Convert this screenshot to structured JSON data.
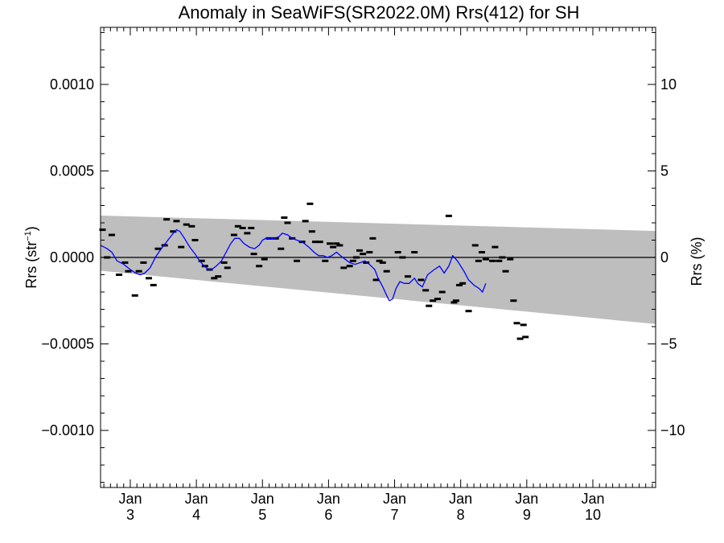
{
  "chart_data": {
    "type": "scatter",
    "title": "Anomaly in SeaWiFS(SR2022.0M) Rrs(412) for SH",
    "ylabel_left": {
      "text": "Rrs (str",
      "sup": "−1",
      "tail": ")"
    },
    "ylabel_right": "Rrs (%)",
    "xlim": [
      2.55,
      10.95
    ],
    "ylim": [
      -0.00133,
      0.00133
    ],
    "ylim_right": [
      -13.3,
      13.3
    ],
    "x_ticks": [
      {
        "value": 3,
        "top": "Jan",
        "bottom": "3"
      },
      {
        "value": 4,
        "top": "Jan",
        "bottom": "4"
      },
      {
        "value": 5,
        "top": "Jan",
        "bottom": "5"
      },
      {
        "value": 6,
        "top": "Jan",
        "bottom": "6"
      },
      {
        "value": 7,
        "top": "Jan",
        "bottom": "7"
      },
      {
        "value": 8,
        "top": "Jan",
        "bottom": "8"
      },
      {
        "value": 9,
        "top": "Jan",
        "bottom": "9"
      },
      {
        "value": 10,
        "top": "Jan",
        "bottom": "10"
      }
    ],
    "y_ticks_left": [
      {
        "value": 0.001,
        "label": "0.0010"
      },
      {
        "value": 0.0005,
        "label": "0.0005"
      },
      {
        "value": 0.0,
        "label": "0.0000"
      },
      {
        "value": -0.0005,
        "label": "−0.0005"
      },
      {
        "value": -0.001,
        "label": "−0.0010"
      }
    ],
    "y_ticks_right": [
      {
        "value": 10,
        "label": "10"
      },
      {
        "value": 5,
        "label": "5"
      },
      {
        "value": 0,
        "label": "0"
      },
      {
        "value": -5,
        "label": "−5"
      },
      {
        "value": -10,
        "label": "−10"
      }
    ],
    "band": {
      "color": "#bebebe",
      "upper": [
        [
          2.55,
          0.000242
        ],
        [
          10.95,
          0.000153
        ]
      ],
      "lower": [
        [
          2.55,
          -7.7e-05
        ],
        [
          10.95,
          -0.000385
        ]
      ]
    },
    "colors": {
      "line": "#0000ff",
      "points": "#000000",
      "zero": "#000000"
    },
    "points": [
      [
        2.58,
        0.00016
      ],
      [
        2.65,
        0.0
      ],
      [
        2.72,
        0.00013
      ],
      [
        2.83,
        -0.0001
      ],
      [
        2.92,
        -3e-05
      ],
      [
        2.97,
        -8e-05
      ],
      [
        3.07,
        -0.00022
      ],
      [
        3.13,
        -8e-05
      ],
      [
        3.2,
        -3e-05
      ],
      [
        3.28,
        -0.00012
      ],
      [
        3.35,
        -0.00016
      ],
      [
        3.42,
        5e-05
      ],
      [
        3.52,
        7e-05
      ],
      [
        3.55,
        0.00022
      ],
      [
        3.65,
        0.00015
      ],
      [
        3.7,
        0.00021
      ],
      [
        3.77,
        6e-05
      ],
      [
        3.85,
        0.00019
      ],
      [
        3.93,
        0.00018
      ],
      [
        3.98,
        0.0001
      ],
      [
        4.08,
        -2e-05
      ],
      [
        4.13,
        -5e-05
      ],
      [
        4.2,
        -7e-05
      ],
      [
        4.27,
        -0.00012
      ],
      [
        4.33,
        -0.00011
      ],
      [
        4.42,
        -3e-05
      ],
      [
        4.47,
        -6e-05
      ],
      [
        4.57,
        0.00013
      ],
      [
        4.63,
        0.00018
      ],
      [
        4.7,
        0.00017
      ],
      [
        4.77,
        0.00014
      ],
      [
        4.83,
        0.00017
      ],
      [
        4.87,
        2e-05
      ],
      [
        4.95,
        -5e-05
      ],
      [
        5.03,
        -1e-05
      ],
      [
        5.1,
        0.00011
      ],
      [
        5.2,
        0.00011
      ],
      [
        5.28,
        5e-05
      ],
      [
        5.33,
        0.00023
      ],
      [
        5.38,
        0.0002
      ],
      [
        5.45,
        0.00011
      ],
      [
        5.52,
        -2e-05
      ],
      [
        5.6,
        9e-05
      ],
      [
        5.65,
        0.00021
      ],
      [
        5.72,
        0.00031
      ],
      [
        5.75,
        0.00015
      ],
      [
        5.8,
        9e-05
      ],
      [
        5.87,
        9e-05
      ],
      [
        5.95,
        -2e-05
      ],
      [
        6.02,
        8e-05
      ],
      [
        6.07,
        6e-05
      ],
      [
        6.12,
        8e-05
      ],
      [
        6.17,
        7e-05
      ],
      [
        6.23,
        -6e-05
      ],
      [
        6.32,
        -5e-05
      ],
      [
        6.37,
        -2e-05
      ],
      [
        6.42,
        0.0
      ],
      [
        6.47,
        4e-05
      ],
      [
        6.52,
        2e-05
      ],
      [
        6.57,
        -3e-05
      ],
      [
        6.62,
        3e-05
      ],
      [
        6.67,
        0.00011
      ],
      [
        6.72,
        -0.00013
      ],
      [
        6.77,
        -2e-05
      ],
      [
        6.82,
        -3e-05
      ],
      [
        6.88,
        -8e-05
      ],
      [
        7.05,
        3e-05
      ],
      [
        7.12,
        0.0
      ],
      [
        7.2,
        -0.00011
      ],
      [
        7.3,
        3e-05
      ],
      [
        7.4,
        -0.00013
      ],
      [
        7.47,
        -0.00019
      ],
      [
        7.52,
        -0.00028
      ],
      [
        7.58,
        -0.00025
      ],
      [
        7.65,
        -0.00024
      ],
      [
        7.72,
        -0.0002
      ],
      [
        7.82,
        0.00024
      ],
      [
        7.9,
        -0.00026
      ],
      [
        7.93,
        -0.00025
      ],
      [
        7.98,
        -0.00016
      ],
      [
        8.03,
        -0.00015
      ],
      [
        8.12,
        -0.00031
      ],
      [
        8.22,
        7e-05
      ],
      [
        8.27,
        -2e-05
      ],
      [
        8.32,
        3e-05
      ],
      [
        8.38,
        -1e-05
      ],
      [
        8.48,
        -2e-05
      ],
      [
        8.52,
        6e-05
      ],
      [
        8.58,
        -2e-05
      ],
      [
        8.63,
        0.0
      ],
      [
        8.68,
        -8e-05
      ],
      [
        8.75,
        -1e-05
      ],
      [
        8.8,
        -0.00025
      ],
      [
        8.85,
        -0.00038
      ],
      [
        8.9,
        -0.00047
      ],
      [
        8.95,
        -0.00039
      ],
      [
        8.98,
        -0.00046
      ]
    ],
    "smooth_line": [
      [
        2.55,
        7e-05
      ],
      [
        2.65,
        5e-05
      ],
      [
        2.72,
        3e-05
      ],
      [
        2.8,
        -2e-05
      ],
      [
        2.9,
        -4e-05
      ],
      [
        3.0,
        -7e-05
      ],
      [
        3.08,
        -9e-05
      ],
      [
        3.15,
        -0.0001
      ],
      [
        3.22,
        -9e-05
      ],
      [
        3.3,
        -6e-05
      ],
      [
        3.38,
        0.0
      ],
      [
        3.45,
        4e-05
      ],
      [
        3.55,
        9e-05
      ],
      [
        3.65,
        0.00014
      ],
      [
        3.7,
        0.00016
      ],
      [
        3.75,
        0.00015
      ],
      [
        3.82,
        0.00011
      ],
      [
        3.9,
        6e-05
      ],
      [
        3.98,
        2e-05
      ],
      [
        4.05,
        -2e-05
      ],
      [
        4.12,
        -5e-05
      ],
      [
        4.18,
        -7e-05
      ],
      [
        4.23,
        -7e-05
      ],
      [
        4.3,
        -5e-05
      ],
      [
        4.38,
        -2e-05
      ],
      [
        4.45,
        3e-05
      ],
      [
        4.52,
        8e-05
      ],
      [
        4.58,
        0.00011
      ],
      [
        4.65,
        0.00011
      ],
      [
        4.72,
        8e-05
      ],
      [
        4.8,
        6e-05
      ],
      [
        4.88,
        5e-05
      ],
      [
        4.95,
        7e-05
      ],
      [
        5.0,
        0.0001
      ],
      [
        5.05,
        0.00011
      ],
      [
        5.1,
        0.00011
      ],
      [
        5.18,
        0.00011
      ],
      [
        5.25,
        0.00012
      ],
      [
        5.3,
        0.00014
      ],
      [
        5.38,
        0.00013
      ],
      [
        5.45,
        0.00011
      ],
      [
        5.52,
        0.0001
      ],
      [
        5.6,
        9e-05
      ],
      [
        5.7,
        6e-05
      ],
      [
        5.78,
        3e-05
      ],
      [
        5.85,
        1e-05
      ],
      [
        5.92,
        1e-05
      ],
      [
        5.98,
        0.0
      ],
      [
        6.05,
        1e-05
      ],
      [
        6.12,
        3e-05
      ],
      [
        6.18,
        1e-05
      ],
      [
        6.25,
        -1e-05
      ],
      [
        6.32,
        -3e-05
      ],
      [
        6.4,
        -4e-05
      ],
      [
        6.48,
        -3e-05
      ],
      [
        6.55,
        -2e-05
      ],
      [
        6.62,
        -4e-05
      ],
      [
        6.7,
        -7e-05
      ],
      [
        6.75,
        -0.00012
      ],
      [
        6.82,
        -0.00017
      ],
      [
        6.88,
        -0.00022
      ],
      [
        6.92,
        -0.00025
      ],
      [
        6.97,
        -0.00024
      ],
      [
        7.02,
        -0.00018
      ],
      [
        7.08,
        -0.00014
      ],
      [
        7.15,
        -0.00015
      ],
      [
        7.22,
        -0.00015
      ],
      [
        7.3,
        -0.00012
      ],
      [
        7.35,
        -0.00015
      ],
      [
        7.42,
        -0.00017
      ],
      [
        7.5,
        -0.0001
      ],
      [
        7.6,
        -7e-05
      ],
      [
        7.68,
        -5e-05
      ],
      [
        7.75,
        -9e-05
      ],
      [
        7.82,
        -5e-05
      ],
      [
        7.88,
        1e-05
      ],
      [
        7.95,
        -2e-05
      ],
      [
        8.05,
        -8e-05
      ],
      [
        8.12,
        -0.00013
      ],
      [
        8.2,
        -0.00016
      ],
      [
        8.28,
        -0.00018
      ],
      [
        8.33,
        -0.0002
      ],
      [
        8.38,
        -0.00015
      ]
    ]
  }
}
